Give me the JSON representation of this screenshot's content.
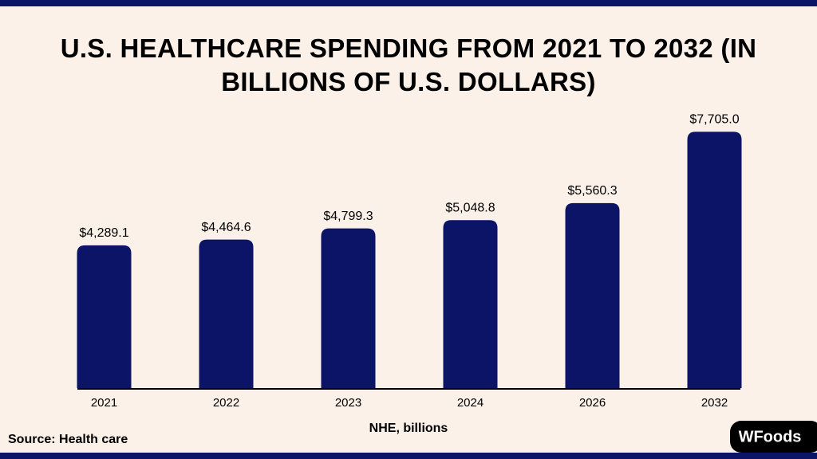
{
  "chart_data": {
    "type": "bar",
    "title": "U.S. HEALTHCARE SPENDING FROM 2021 TO 2032 (IN BILLIONS OF U.S. DOLLARS)",
    "categories": [
      "2021",
      "2022",
      "2023",
      "2024",
      "2026",
      "2032"
    ],
    "values": [
      4289.1,
      4464.6,
      4799.3,
      5048.8,
      5560.3,
      7705.0
    ],
    "value_labels": [
      "$4,289.1",
      "$4,464.6",
      "$4,799.3",
      "$5,048.8",
      "$5,560.3",
      "$7,705.0"
    ],
    "color": "#0b1466",
    "ylim": [
      0,
      8000
    ],
    "x_label": "NHE, billions",
    "source": "Source: Health care",
    "logo": "WFoods"
  }
}
